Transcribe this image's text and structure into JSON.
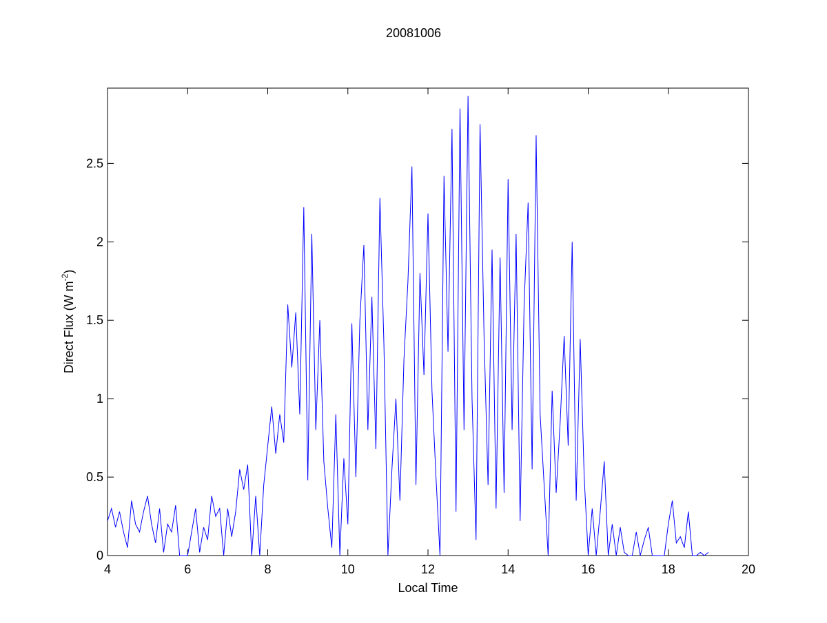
{
  "chart_data": {
    "type": "line",
    "title": "20081006",
    "x_label": "Local Time",
    "y_label": {
      "text": "Direct Flux (W m",
      "superscript": "-2",
      "suffix": ")"
    },
    "color": "#0000ff",
    "xlim": [
      4,
      20
    ],
    "xticks": [
      4,
      6,
      8,
      10,
      12,
      14,
      16,
      18,
      20
    ],
    "ylim": [
      0,
      2.98
    ],
    "yticks": [
      0,
      0.5,
      1,
      1.5,
      2,
      2.5
    ],
    "x": [
      4.0,
      4.1,
      4.2,
      4.3,
      4.4,
      4.5,
      4.6,
      4.7,
      4.8,
      4.9,
      5.0,
      5.1,
      5.2,
      5.3,
      5.4,
      5.5,
      5.6,
      5.7,
      5.8,
      5.9,
      6.0,
      6.1,
      6.2,
      6.3,
      6.4,
      6.5,
      6.6,
      6.7,
      6.8,
      6.9,
      7.0,
      7.1,
      7.2,
      7.3,
      7.4,
      7.5,
      7.6,
      7.7,
      7.8,
      7.9,
      8.0,
      8.1,
      8.2,
      8.3,
      8.4,
      8.5,
      8.6,
      8.7,
      8.8,
      8.9,
      9.0,
      9.1,
      9.2,
      9.3,
      9.4,
      9.5,
      9.6,
      9.7,
      9.8,
      9.9,
      10.0,
      10.1,
      10.2,
      10.3,
      10.4,
      10.5,
      10.6,
      10.7,
      10.8,
      10.9,
      11.0,
      11.1,
      11.2,
      11.3,
      11.4,
      11.5,
      11.6,
      11.7,
      11.8,
      11.9,
      12.0,
      12.1,
      12.2,
      12.3,
      12.4,
      12.5,
      12.6,
      12.7,
      12.8,
      12.9,
      13.0,
      13.1,
      13.2,
      13.3,
      13.4,
      13.5,
      13.6,
      13.7,
      13.8,
      13.9,
      14.0,
      14.1,
      14.2,
      14.3,
      14.4,
      14.5,
      14.6,
      14.7,
      14.8,
      14.9,
      15.0,
      15.1,
      15.2,
      15.3,
      15.4,
      15.5,
      15.6,
      15.7,
      15.8,
      15.9,
      16.0,
      16.1,
      16.2,
      16.3,
      16.4,
      16.5,
      16.6,
      16.7,
      16.8,
      16.9,
      17.0,
      17.1,
      17.2,
      17.3,
      17.4,
      17.5,
      17.6,
      17.7,
      17.8,
      17.9,
      18.0,
      18.1,
      18.2,
      18.3,
      18.4,
      18.5,
      18.6,
      18.7,
      18.8,
      18.9,
      19.0
    ],
    "values": [
      0.22,
      0.3,
      0.18,
      0.28,
      0.15,
      0.05,
      0.35,
      0.2,
      0.15,
      0.28,
      0.38,
      0.2,
      0.08,
      0.3,
      0.02,
      0.2,
      0.15,
      0.32,
      0,
      0,
      0,
      0.15,
      0.3,
      0.02,
      0.18,
      0.1,
      0.38,
      0.25,
      0.3,
      0,
      0.3,
      0.12,
      0.28,
      0.55,
      0.42,
      0.58,
      0,
      0.38,
      0,
      0.45,
      0.7,
      0.95,
      0.65,
      0.9,
      0.72,
      1.6,
      1.2,
      1.55,
      0.9,
      2.22,
      0.48,
      2.05,
      0.8,
      1.5,
      0.6,
      0.3,
      0.05,
      0.9,
      0,
      0.62,
      0.2,
      1.48,
      0.5,
      1.5,
      1.98,
      0.8,
      1.65,
      0.68,
      2.28,
      1.35,
      0,
      0.55,
      1.0,
      0.35,
      1.25,
      1.75,
      2.48,
      0.45,
      1.8,
      1.15,
      2.18,
      1.05,
      0.5,
      0,
      2.42,
      1.3,
      2.72,
      0.28,
      2.85,
      0.8,
      2.93,
      1.0,
      0.1,
      2.75,
      1.4,
      0.45,
      1.95,
      0.3,
      1.9,
      0.4,
      2.4,
      0.8,
      2.05,
      0.22,
      1.6,
      2.25,
      0.55,
      2.68,
      0.9,
      0.45,
      0,
      1.05,
      0.4,
      0.85,
      1.4,
      0.7,
      2.0,
      0.35,
      1.38,
      0.5,
      0,
      0.3,
      0,
      0.28,
      0.6,
      0,
      0.2,
      0,
      0.18,
      0.02,
      0,
      0,
      0.15,
      0,
      0.1,
      0.18,
      0,
      0,
      0,
      0,
      0.2,
      0.35,
      0.08,
      0.12,
      0.05,
      0.28,
      0,
      0,
      0.02,
      0,
      0.02
    ]
  }
}
